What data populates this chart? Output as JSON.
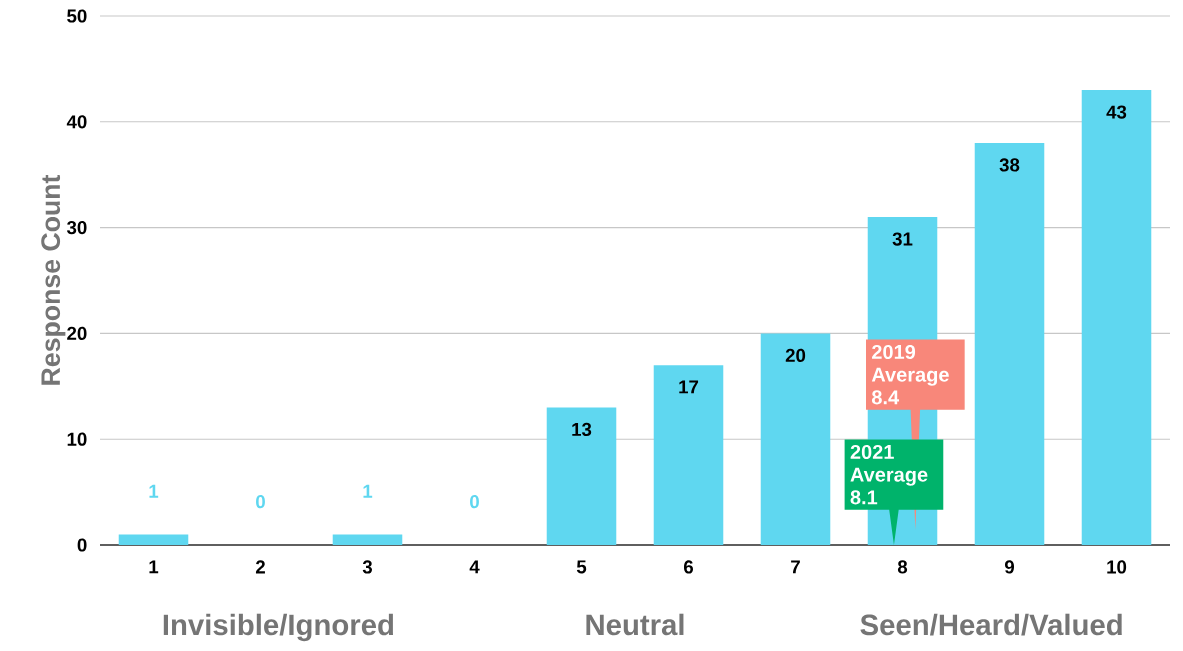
{
  "chart_data": {
    "type": "bar",
    "x": [
      1,
      2,
      3,
      4,
      5,
      6,
      7,
      8,
      9,
      10
    ],
    "values": [
      1,
      0,
      1,
      0,
      13,
      17,
      20,
      31,
      38,
      43
    ],
    "color": "#5fd7f0",
    "xlim": [
      0.5,
      10.5
    ],
    "xticks": [
      1,
      2,
      3,
      4,
      5,
      6,
      7,
      8,
      9,
      10
    ],
    "ylim": [
      0,
      50
    ],
    "yticks": [
      0,
      10,
      20,
      30,
      40,
      50
    ],
    "ylabel": "Response Count",
    "grid": "y",
    "data_labels": true,
    "annotations": [
      "Invisible/Ignored",
      "Neutral",
      "Seen/Heard/Valued",
      "2019 Average 8.4",
      "2021 Average 8.1"
    ]
  }
}
